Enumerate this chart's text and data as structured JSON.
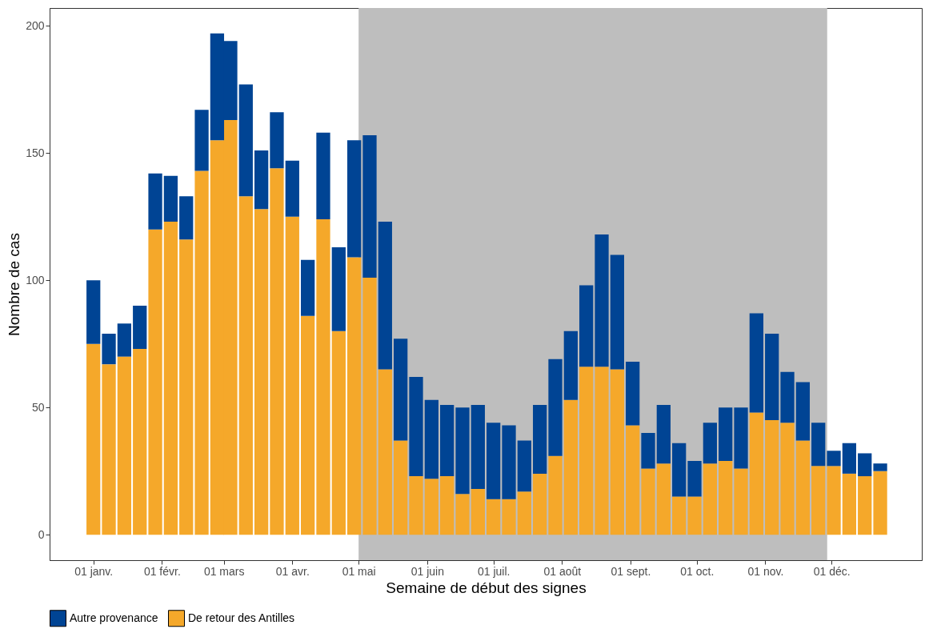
{
  "chart_data": {
    "type": "bar",
    "stacked": true,
    "xlabel": "Semaine de début des signes",
    "ylabel": "Nombre de cas",
    "x": [
      "--01-01",
      "--01-08",
      "--01-15",
      "--01-22",
      "--01-29",
      "--02-05",
      "--02-12",
      "--02-19",
      "--02-26",
      "--03-04",
      "--03-11",
      "--03-18",
      "--03-25",
      "--04-01",
      "--04-08",
      "--04-15",
      "--04-22",
      "--04-29",
      "--05-06",
      "--05-13",
      "--05-20",
      "--05-27",
      "--06-03",
      "--06-10",
      "--06-17",
      "--06-24",
      "--07-01",
      "--07-08",
      "--07-15",
      "--07-22",
      "--07-29",
      "--08-05",
      "--08-12",
      "--08-19",
      "--08-26",
      "--09-02",
      "--09-09",
      "--09-16",
      "--09-23",
      "--09-30",
      "--10-07",
      "--10-14",
      "--10-21",
      "--10-28",
      "--11-04",
      "--11-11",
      "--11-18",
      "--11-25",
      "--12-02",
      "--12-09",
      "--12-16",
      "--12-23"
    ],
    "series": [
      {
        "name": "De retour des Antilles",
        "color": "#f5a82a",
        "values": [
          75,
          67,
          70,
          73,
          120,
          123,
          116,
          143,
          155,
          163,
          133,
          128,
          144,
          125,
          86,
          124,
          80,
          109,
          101,
          65,
          37,
          23,
          22,
          23,
          16,
          18,
          14,
          14,
          17,
          24,
          31,
          53,
          66,
          66,
          65,
          43,
          26,
          28,
          15,
          15,
          28,
          29,
          26,
          48,
          45,
          44,
          37,
          27,
          27,
          24,
          23,
          25
        ]
      },
      {
        "name": "Autre provenance",
        "color": "#004494",
        "values": [
          25,
          12,
          13,
          17,
          22,
          18,
          17,
          24,
          42,
          31,
          44,
          23,
          22,
          22,
          22,
          34,
          33,
          46,
          56,
          58,
          40,
          39,
          31,
          28,
          34,
          33,
          30,
          29,
          20,
          27,
          38,
          27,
          32,
          52,
          45,
          25,
          14,
          23,
          21,
          14,
          16,
          21,
          24,
          39,
          34,
          20,
          23,
          17,
          6,
          12,
          9,
          3
        ]
      }
    ],
    "xlim": [
      "2000-12-14",
      "2002-01-09"
    ],
    "xticks": [
      {
        "value": "--01-01",
        "label": "01 janv."
      },
      {
        "value": "--02-01",
        "label": "01 févr."
      },
      {
        "value": "--03-01",
        "label": "01 mars"
      },
      {
        "value": "--04-01",
        "label": "01 avr."
      },
      {
        "value": "--05-01",
        "label": "01 mai"
      },
      {
        "value": "--06-01",
        "label": "01 juin"
      },
      {
        "value": "--07-01",
        "label": "01 juil."
      },
      {
        "value": "--08-01",
        "label": "01 août"
      },
      {
        "value": "--09-01",
        "label": "01 sept."
      },
      {
        "value": "--10-01",
        "label": "01 oct."
      },
      {
        "value": "--11-01",
        "label": "01 nov."
      },
      {
        "value": "--12-01",
        "label": "01 déc."
      }
    ],
    "ylim": [
      -10,
      207
    ],
    "yticks": [
      0,
      50,
      100,
      150,
      200
    ],
    "bands": [
      {
        "axis": "x",
        "from": "--05-01",
        "to": "--11-29",
        "color": "#bebebe"
      }
    ],
    "grid": false,
    "legend": "bottom"
  }
}
